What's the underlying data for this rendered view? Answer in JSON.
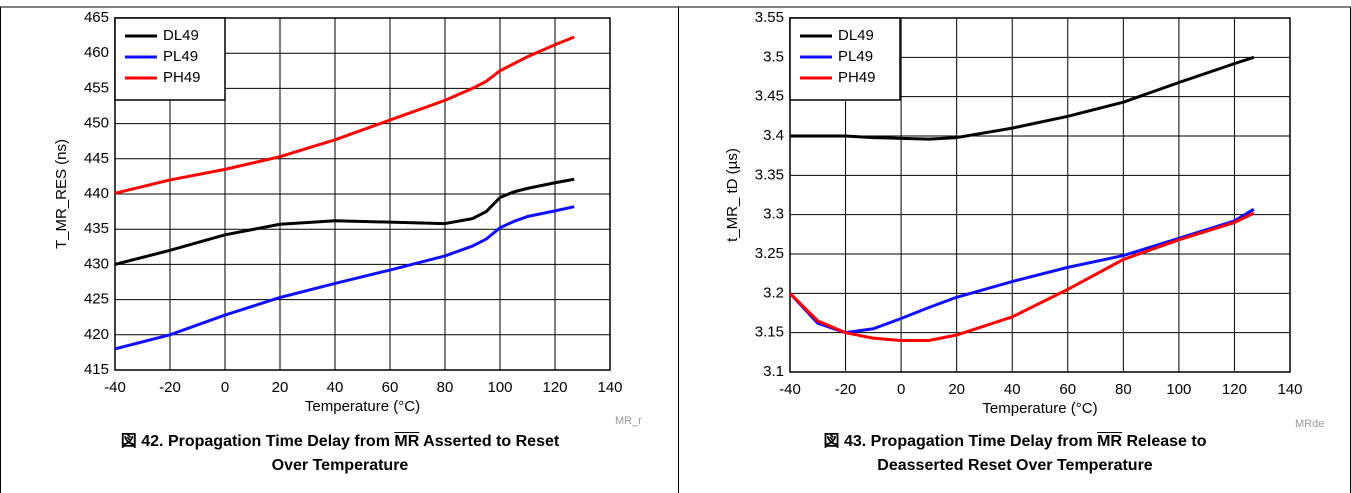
{
  "chart_data": [
    {
      "type": "line",
      "x_label": "Temperature (°C)",
      "y_label": "T_MR_RES (ns)",
      "note": "MR_r",
      "caption": {
        "number": "図 42.",
        "before": "Propagation Time Delay from",
        "overlined": "MR",
        "after": "Asserted to Reset",
        "line2": "Over Temperature"
      },
      "x": [
        -40,
        -20,
        0,
        20,
        40,
        60,
        80,
        90,
        95,
        100,
        105,
        110,
        120,
        127
      ],
      "xlim": [
        -40,
        140
      ],
      "xticks": [
        -40,
        -20,
        0,
        20,
        40,
        60,
        80,
        100,
        120,
        140
      ],
      "ylim": [
        415,
        465
      ],
      "yticks": [
        415,
        420,
        425,
        430,
        435,
        440,
        445,
        450,
        455,
        460,
        465
      ],
      "grid": true,
      "legend": "upper left",
      "series": [
        {
          "name": "DL49",
          "color": "#000000",
          "values": [
            430,
            432,
            434.2,
            435.7,
            436.2,
            436,
            435.8,
            436.5,
            437.5,
            439.5,
            440.3,
            440.8,
            441.6,
            442.1
          ]
        },
        {
          "name": "PL49",
          "color": "#1010ff",
          "values": [
            418,
            420,
            422.8,
            425.3,
            427.3,
            429.2,
            431.2,
            432.6,
            433.6,
            435.2,
            436.1,
            436.8,
            437.6,
            438.2
          ]
        },
        {
          "name": "PH49",
          "color": "#ff0000",
          "values": [
            440.1,
            442,
            443.5,
            445.3,
            447.7,
            450.5,
            453.3,
            455,
            456,
            457.5,
            458.5,
            459.5,
            461.2,
            462.3
          ]
        }
      ]
    },
    {
      "type": "line",
      "x_label": "Temperature (°C)",
      "y_label": "t_MR_ tD (µs)",
      "note": "MRde",
      "caption": {
        "number": "図 43.",
        "before": "Propagation Time Delay from",
        "overlined": "MR",
        "after": "Release to",
        "line2": "Deasserted Reset Over Temperature"
      },
      "x": [
        -40,
        -30,
        -20,
        -10,
        0,
        10,
        20,
        40,
        60,
        80,
        100,
        120,
        127
      ],
      "xlim": [
        -40,
        140
      ],
      "xticks": [
        -40,
        -20,
        0,
        20,
        40,
        60,
        80,
        100,
        120,
        140
      ],
      "ylim": [
        3.1,
        3.55
      ],
      "yticks": [
        3.1,
        3.15,
        3.2,
        3.25,
        3.3,
        3.35,
        3.4,
        3.45,
        3.5,
        3.55
      ],
      "grid": true,
      "legend": "upper left",
      "series": [
        {
          "name": "DL49",
          "color": "#000000",
          "values": [
            3.4,
            3.4,
            3.4,
            3.398,
            3.397,
            3.396,
            3.398,
            3.41,
            3.425,
            3.443,
            3.468,
            3.492,
            3.5
          ]
        },
        {
          "name": "PL49",
          "color": "#1010ff",
          "values": [
            3.2,
            3.162,
            3.15,
            3.155,
            3.168,
            3.182,
            3.195,
            3.215,
            3.233,
            3.248,
            3.27,
            3.292,
            3.307
          ]
        },
        {
          "name": "PH49",
          "color": "#ff0000",
          "values": [
            3.2,
            3.165,
            3.15,
            3.143,
            3.14,
            3.14,
            3.147,
            3.17,
            3.205,
            3.243,
            3.268,
            3.29,
            3.302
          ]
        }
      ]
    }
  ]
}
